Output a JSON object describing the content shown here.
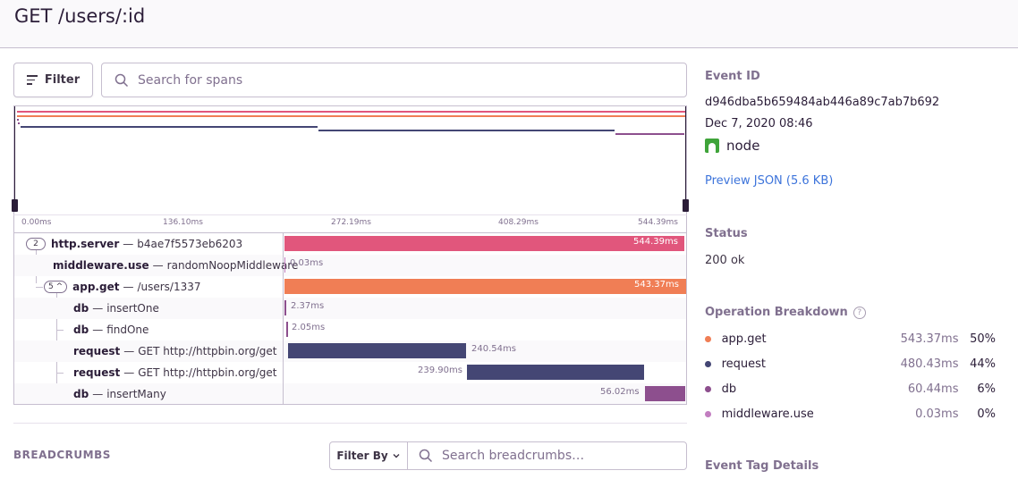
{
  "header": {
    "title": "GET /users/:id"
  },
  "toolbar": {
    "filter_label": "Filter",
    "search_placeholder": "Search for spans"
  },
  "ticks": [
    "0.00ms",
    "136.10ms",
    "272.19ms",
    "408.29ms",
    "544.39ms"
  ],
  "colors": {
    "http_server": "#e1567c",
    "app_get": "#f07e55",
    "request": "#444674",
    "db": "#8d4f8e",
    "middleware": "#c27dc0"
  },
  "spans": [
    {
      "badge": "2",
      "op": "http.server",
      "desc": "b4ae7f5573eb6203",
      "duration": "544.39ms",
      "start_ms": 0,
      "end_ms": 544.39,
      "color": "#e1567c",
      "depth": 0
    },
    {
      "op": "middleware.use",
      "desc": "randomNoopMiddleware",
      "duration": "0.03ms",
      "start_ms": 0,
      "end_ms": 0.03,
      "color": "#c27dc0",
      "depth": 1
    },
    {
      "badge": "5 ^",
      "op": "app.get",
      "desc": "/users/1337",
      "duration": "543.37ms",
      "start_ms": 0.2,
      "end_ms": 543.57,
      "color": "#f07e55",
      "depth": 1
    },
    {
      "op": "db",
      "desc": "insertOne",
      "duration": "2.37ms",
      "start_ms": 0.3,
      "end_ms": 2.67,
      "color": "#8d4f8e",
      "depth": 2
    },
    {
      "op": "db",
      "desc": "findOne",
      "duration": "2.05ms",
      "start_ms": 2.7,
      "end_ms": 4.75,
      "color": "#8d4f8e",
      "depth": 2
    },
    {
      "op": "request",
      "desc": "GET http://httpbin.org/get",
      "duration": "240.54ms",
      "start_ms": 4.8,
      "end_ms": 245.34,
      "color": "#444674",
      "depth": 2
    },
    {
      "op": "request",
      "desc": "GET http://httpbin.org/get",
      "duration": "239.90ms",
      "start_ms": 245.4,
      "end_ms": 485.3,
      "color": "#444674",
      "depth": 2
    },
    {
      "op": "db",
      "desc": "insertMany",
      "duration": "56.02ms",
      "start_ms": 486.9,
      "end_ms": 542.92,
      "color": "#8d4f8e",
      "depth": 2
    }
  ],
  "breadcrumbs": {
    "title": "BREADCRUMBS",
    "filter_label": "Filter By",
    "search_placeholder": "Search breadcrumbs…"
  },
  "sidebar": {
    "event_id_label": "Event ID",
    "event_id": "d946dba5b659484ab446a89c7ab7b692",
    "date": "Dec 7, 2020 08:46",
    "platform": "node",
    "preview_json": "Preview JSON (5.6 KB)",
    "status_label": "Status",
    "status_value": "200 ok",
    "breakdown_label": "Operation Breakdown",
    "help_glyph": "?",
    "breakdown": [
      {
        "name": "app.get",
        "duration": "543.37ms",
        "percent": "50%",
        "color": "#f07e55"
      },
      {
        "name": "request",
        "duration": "480.43ms",
        "percent": "44%",
        "color": "#444674"
      },
      {
        "name": "db",
        "duration": "60.44ms",
        "percent": "6%",
        "color": "#8d4f8e"
      },
      {
        "name": "middleware.use",
        "duration": "0.03ms",
        "percent": "0%",
        "color": "#c27dc0"
      }
    ],
    "tag_details_label": "Event Tag Details"
  }
}
